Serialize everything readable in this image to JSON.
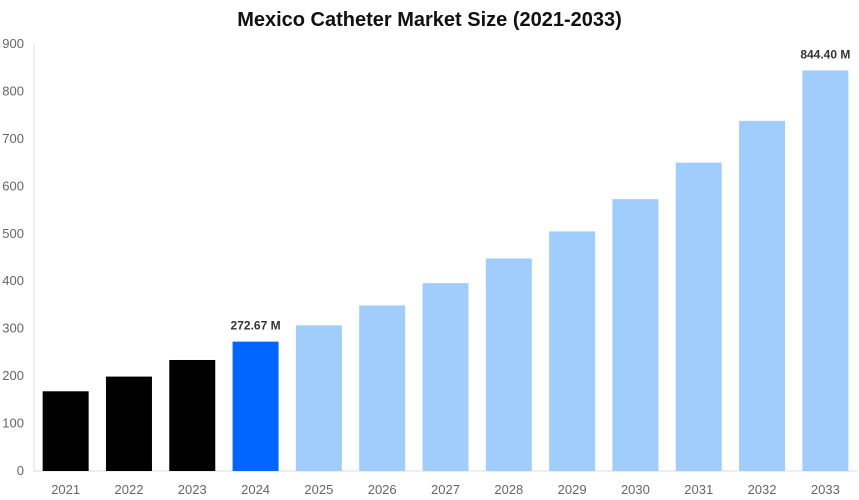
{
  "chart_data": {
    "type": "bar",
    "title": "Mexico Catheter Market Size (2021-2033)",
    "xlabel": "",
    "ylabel": "",
    "ylim": [
      0,
      900
    ],
    "yticks": [
      0,
      100,
      200,
      300,
      400,
      500,
      600,
      700,
      800,
      900
    ],
    "grid": false,
    "categories": [
      "2021",
      "2022",
      "2023",
      "2024",
      "2025",
      "2026",
      "2027",
      "2028",
      "2029",
      "2030",
      "2031",
      "2032",
      "2033"
    ],
    "values": [
      168,
      199,
      234,
      272.67,
      307,
      349,
      396,
      448,
      505,
      573,
      650,
      738,
      844.4
    ],
    "data_labels": {
      "2024": "272.67 M",
      "2033": "844.40 M"
    },
    "colors": {
      "historical": "#000000",
      "base_year": "#0066ff",
      "forecast": "#a0cdfc"
    },
    "bar_color_groups": [
      "historical",
      "historical",
      "historical",
      "base_year",
      "forecast",
      "forecast",
      "forecast",
      "forecast",
      "forecast",
      "forecast",
      "forecast",
      "forecast",
      "forecast"
    ]
  }
}
